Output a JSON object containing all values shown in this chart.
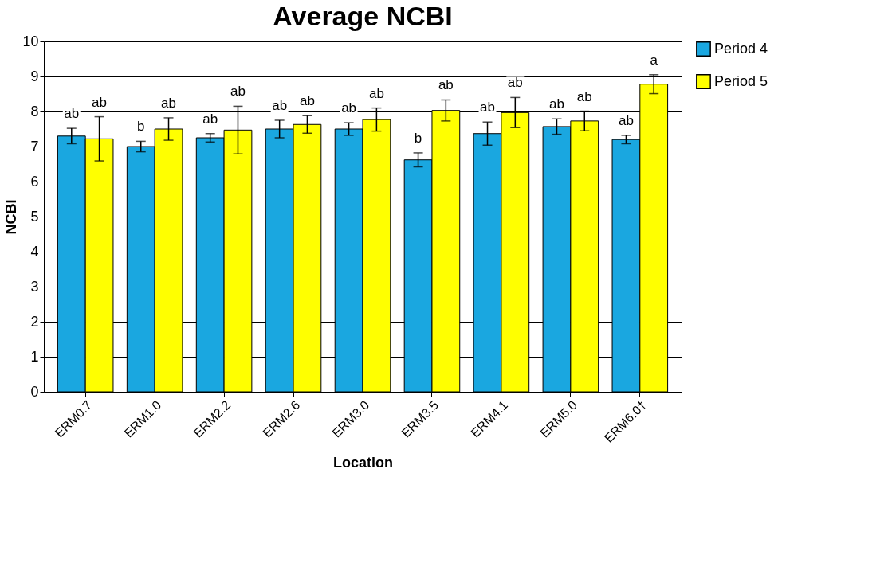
{
  "chart_data": {
    "type": "bar",
    "title": "Average NCBI",
    "xlabel": "Location",
    "ylabel": "NCBI",
    "categories": [
      "ERM0.7",
      "ERM1.0",
      "ERM2.2",
      "ERM2.6",
      "ERM3.0",
      "ERM3.5",
      "ERM4.1",
      "ERM5.0",
      "ERM6.0†"
    ],
    "series": [
      {
        "name": "Period 4",
        "color": "#1aa7e0",
        "values": [
          7.3,
          7.0,
          7.25,
          7.5,
          7.5,
          6.62,
          7.37,
          7.57,
          7.2
        ],
        "errors": [
          0.22,
          0.15,
          0.12,
          0.25,
          0.18,
          0.2,
          0.33,
          0.22,
          0.12
        ],
        "value_labels": [
          "ab",
          "b",
          "ab",
          "ab",
          "ab",
          "b",
          "ab",
          "ab",
          "ab"
        ]
      },
      {
        "name": "Period 5",
        "color": "#ffff00",
        "values": [
          7.22,
          7.5,
          7.47,
          7.63,
          7.77,
          8.03,
          7.97,
          7.73,
          8.78
        ],
        "errors": [
          0.63,
          0.32,
          0.68,
          0.25,
          0.33,
          0.3,
          0.43,
          0.28,
          0.27
        ],
        "value_labels": [
          "ab",
          "ab",
          "ab",
          "ab",
          "ab",
          "ab",
          "ab",
          "ab",
          "a"
        ]
      }
    ],
    "ylim": [
      0,
      10
    ],
    "yticks": [
      0,
      1,
      2,
      3,
      4,
      5,
      6,
      7,
      8,
      9,
      10
    ],
    "grid": "y",
    "legend": "right"
  }
}
